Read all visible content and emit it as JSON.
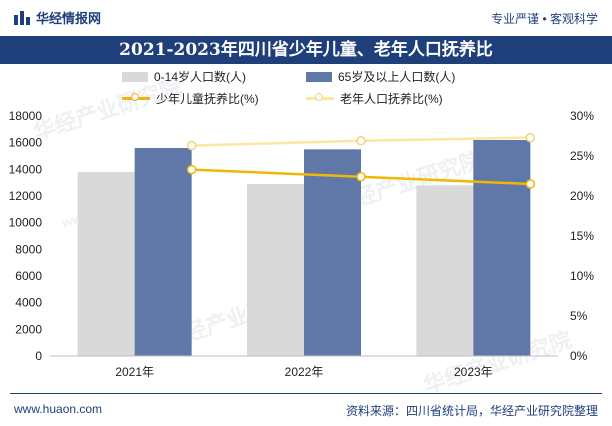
{
  "header": {
    "brand": "华经情报网",
    "tagline": "专业严谨 • 客观科学"
  },
  "chart_data": {
    "type": "bar",
    "title": "2021-2023年四川省少年儿童、老年人口抚养比",
    "categories": [
      "2021年",
      "2022年",
      "2023年"
    ],
    "series": [
      {
        "name": "0-14岁人口数(人)",
        "kind": "bar",
        "axis": "left",
        "color": "#d9d9d9",
        "values": [
          13800,
          12900,
          12800
        ]
      },
      {
        "name": "65岁及以上人口数(人)",
        "kind": "bar",
        "axis": "left",
        "color": "#5f78a8",
        "values": [
          15600,
          15500,
          16200
        ]
      },
      {
        "name": "少年儿童抚养比(%)",
        "kind": "line",
        "axis": "right",
        "color": "#f2b705",
        "values": [
          23.3,
          22.4,
          21.5
        ]
      },
      {
        "name": "老年人口抚养比(%)",
        "kind": "line",
        "axis": "right",
        "color": "#fbe7a1",
        "values": [
          26.3,
          26.9,
          27.3
        ]
      }
    ],
    "y_left": {
      "min": 0,
      "max": 18000,
      "ticks": [
        "0",
        "2000",
        "4000",
        "6000",
        "8000",
        "10000",
        "12000",
        "14000",
        "16000",
        "18000"
      ]
    },
    "y_right": {
      "min": 0,
      "max": 30,
      "ticks": [
        "0%",
        "5%",
        "10%",
        "15%",
        "20%",
        "25%",
        "30%"
      ]
    },
    "legend_position": "top"
  },
  "watermark": "华经产业研究院",
  "watermark_url": "www.huaon.com",
  "footer": {
    "url": "www.huaon.com",
    "source": "资料来源：四川省统计局，华经产业研究院整理"
  }
}
